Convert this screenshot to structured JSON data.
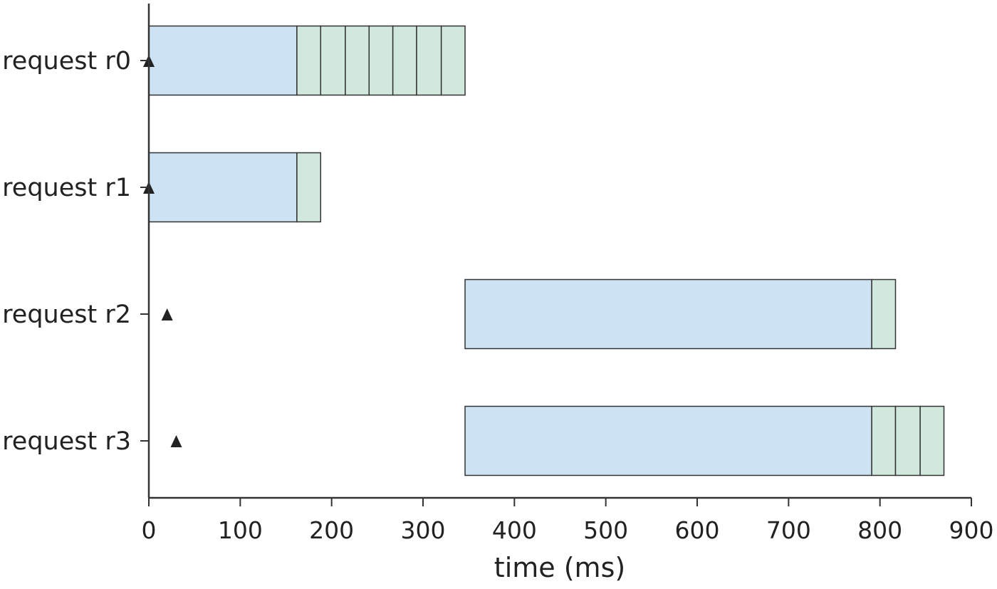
{
  "chart_data": {
    "type": "gantt",
    "xlabel": "time (ms)",
    "xlim": [
      0,
      900
    ],
    "x_ticks": [
      0,
      100,
      200,
      300,
      400,
      500,
      600,
      700,
      800,
      900
    ],
    "categories": [
      "request r0",
      "request r1",
      "request r2",
      "request r3"
    ],
    "colors": {
      "prefill": "#cde3f3",
      "decode": "#d1e9dc",
      "edge": "#333333",
      "marker": "#222222"
    },
    "requests": [
      {
        "label": "request r0",
        "arrival": 0,
        "prefill": [
          0,
          162
        ],
        "decode_steps": [
          162,
          188,
          215,
          241,
          267,
          293,
          320,
          346
        ]
      },
      {
        "label": "request r1",
        "arrival": 0,
        "prefill": [
          0,
          162
        ],
        "decode_steps": [
          162,
          188
        ]
      },
      {
        "label": "request r2",
        "arrival": 20,
        "prefill": [
          346,
          791
        ],
        "decode_steps": [
          791,
          817
        ]
      },
      {
        "label": "request r3",
        "arrival": 30,
        "prefill": [
          346,
          791
        ],
        "decode_steps": [
          791,
          817,
          844,
          870
        ]
      }
    ]
  }
}
